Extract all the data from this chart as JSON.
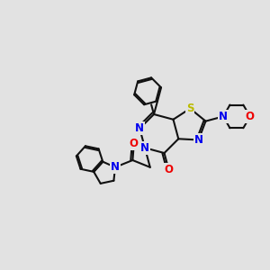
{
  "bg_color": "#e2e2e2",
  "bond_color": "#111111",
  "bond_width": 1.5,
  "N_color": "#0000ee",
  "O_color": "#ee0000",
  "S_color": "#bbbb00",
  "font_size_atom": 8.5,
  "fig_width": 3.0,
  "fig_height": 3.0,
  "dpi": 100,
  "xlim": [
    0,
    10
  ],
  "ylim": [
    0,
    10
  ]
}
